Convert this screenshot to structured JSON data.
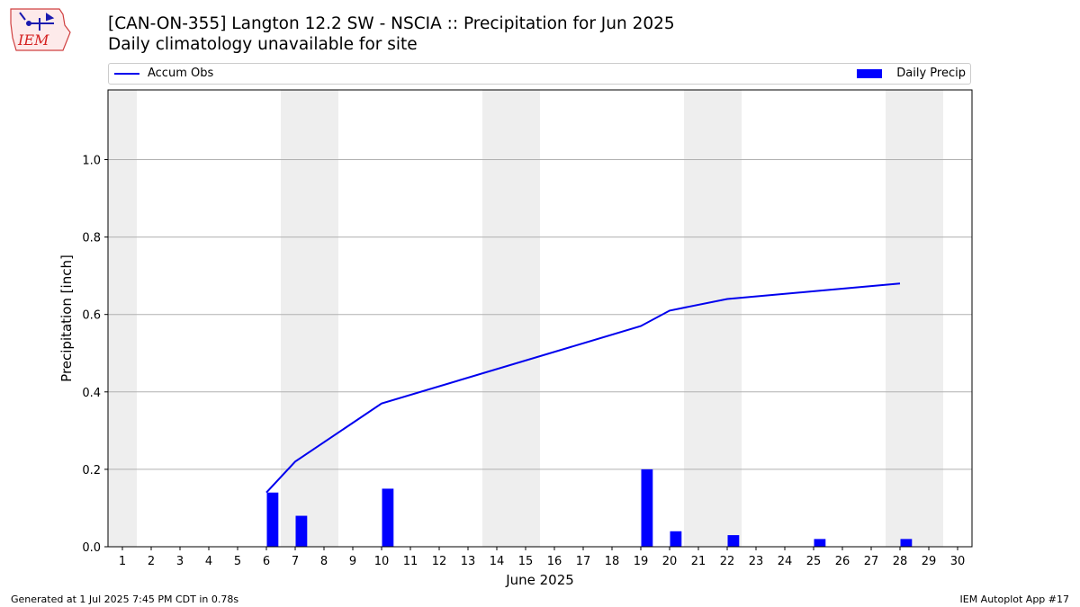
{
  "header": {
    "title_line1": "[CAN-ON-355] Langton 12.2 SW - NSCIA :: Precipitation for Jun 2025",
    "title_line2": "Daily climatology unavailable for site"
  },
  "logo": {
    "text": "IEM"
  },
  "legend": {
    "accum_label": "Accum Obs",
    "daily_label": "Daily Precip"
  },
  "footer": {
    "left": "Generated at 1 Jul 2025 7:45 PM CDT in 0.78s",
    "right": "IEM Autoplot App #17"
  },
  "colors": {
    "bar": "#0000ff",
    "line": "#0000ee",
    "weekend_shade": "#eeeeee",
    "grid": "#b0b0b0"
  },
  "chart_data": {
    "type": "bar",
    "title": "[CAN-ON-355] Langton 12.2 SW - NSCIA :: Precipitation for Jun 2025",
    "subtitle": "Daily climatology unavailable for site",
    "xlabel": "June 2025",
    "ylabel": "Precipitation [inch]",
    "xlim": [
      0.5,
      30.5
    ],
    "ylim": [
      0,
      1.18
    ],
    "yticks": [
      0.0,
      0.2,
      0.4,
      0.6,
      0.8,
      1.0
    ],
    "ytick_labels": [
      "0.0",
      "0.2",
      "0.4",
      "0.6",
      "0.8",
      "1.0"
    ],
    "xticks": [
      1,
      2,
      3,
      4,
      5,
      6,
      7,
      8,
      9,
      10,
      11,
      12,
      13,
      14,
      15,
      16,
      17,
      18,
      19,
      20,
      21,
      22,
      23,
      24,
      25,
      26,
      27,
      28,
      29,
      30
    ],
    "grid": "horizontal",
    "legend_position": "top",
    "weekend_shading_days": [
      1,
      7,
      8,
      14,
      15,
      21,
      22,
      28,
      29
    ],
    "series": [
      {
        "name": "Daily Precip",
        "type": "bar",
        "x": [
          6,
          7,
          10,
          19,
          20,
          22,
          25,
          28
        ],
        "values": [
          0.14,
          0.08,
          0.15,
          0.2,
          0.04,
          0.03,
          0.02,
          0.02
        ]
      },
      {
        "name": "Accum Obs",
        "type": "line",
        "x": [
          6,
          7,
          10,
          19,
          20,
          22,
          25,
          28
        ],
        "values": [
          0.14,
          0.22,
          0.37,
          0.57,
          0.61,
          0.64,
          0.66,
          0.68
        ]
      }
    ]
  }
}
